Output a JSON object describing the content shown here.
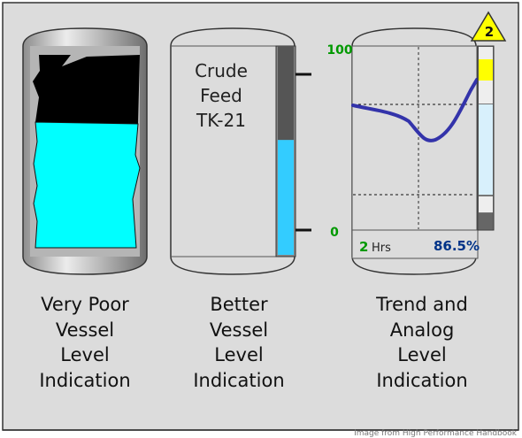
{
  "vessel_1": {
    "caption": [
      "Very Poor",
      "Vessel",
      "Level",
      "Indication"
    ]
  },
  "vessel_2": {
    "label": [
      "Crude",
      "Feed",
      "TK-21"
    ],
    "scale_max": "100",
    "scale_min": "0",
    "level_percent": 55,
    "caption": [
      "Better",
      "Vessel",
      "Level",
      "Indication"
    ]
  },
  "vessel_3": {
    "alarm_count": "2",
    "time_span_value": "2",
    "time_span_unit": "Hrs",
    "analog_value": "86.5%",
    "caption": [
      "Trend and",
      "Analog",
      "Level",
      "Indication"
    ]
  },
  "credit": "Image from High Performance Handbook",
  "colors": {
    "liquid": "#00ffff",
    "vapor": "#000000",
    "level_bar": "#33ccff",
    "bar_empty": "#555555",
    "trend_line": "#3333aa",
    "scale_text": "#009900",
    "analog_text": "#003388",
    "alarm_fill": "#ffff00"
  }
}
